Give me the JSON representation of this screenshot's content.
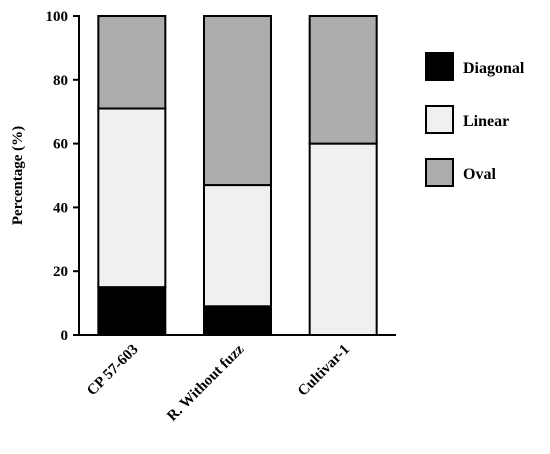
{
  "chart_data": {
    "type": "bar",
    "stacked": true,
    "title": "",
    "xlabel": "",
    "ylabel": "Percentage (%)",
    "ylim": [
      0,
      100
    ],
    "yticks": [
      0,
      20,
      40,
      60,
      80,
      100
    ],
    "categories": [
      "CP 57-603",
      "R. Without fuzz",
      "Cultivar-1"
    ],
    "series": [
      {
        "name": "Diagonal",
        "color": "#000000",
        "values": [
          15,
          9,
          0
        ]
      },
      {
        "name": "Linear",
        "color": "#f0f0f0",
        "values": [
          56,
          38,
          60
        ]
      },
      {
        "name": "Oval",
        "color": "#acacac",
        "values": [
          29,
          53,
          40
        ]
      }
    ],
    "legend": {
      "position": "right",
      "order": [
        "Diagonal",
        "Linear",
        "Oval"
      ]
    },
    "grid": false
  }
}
